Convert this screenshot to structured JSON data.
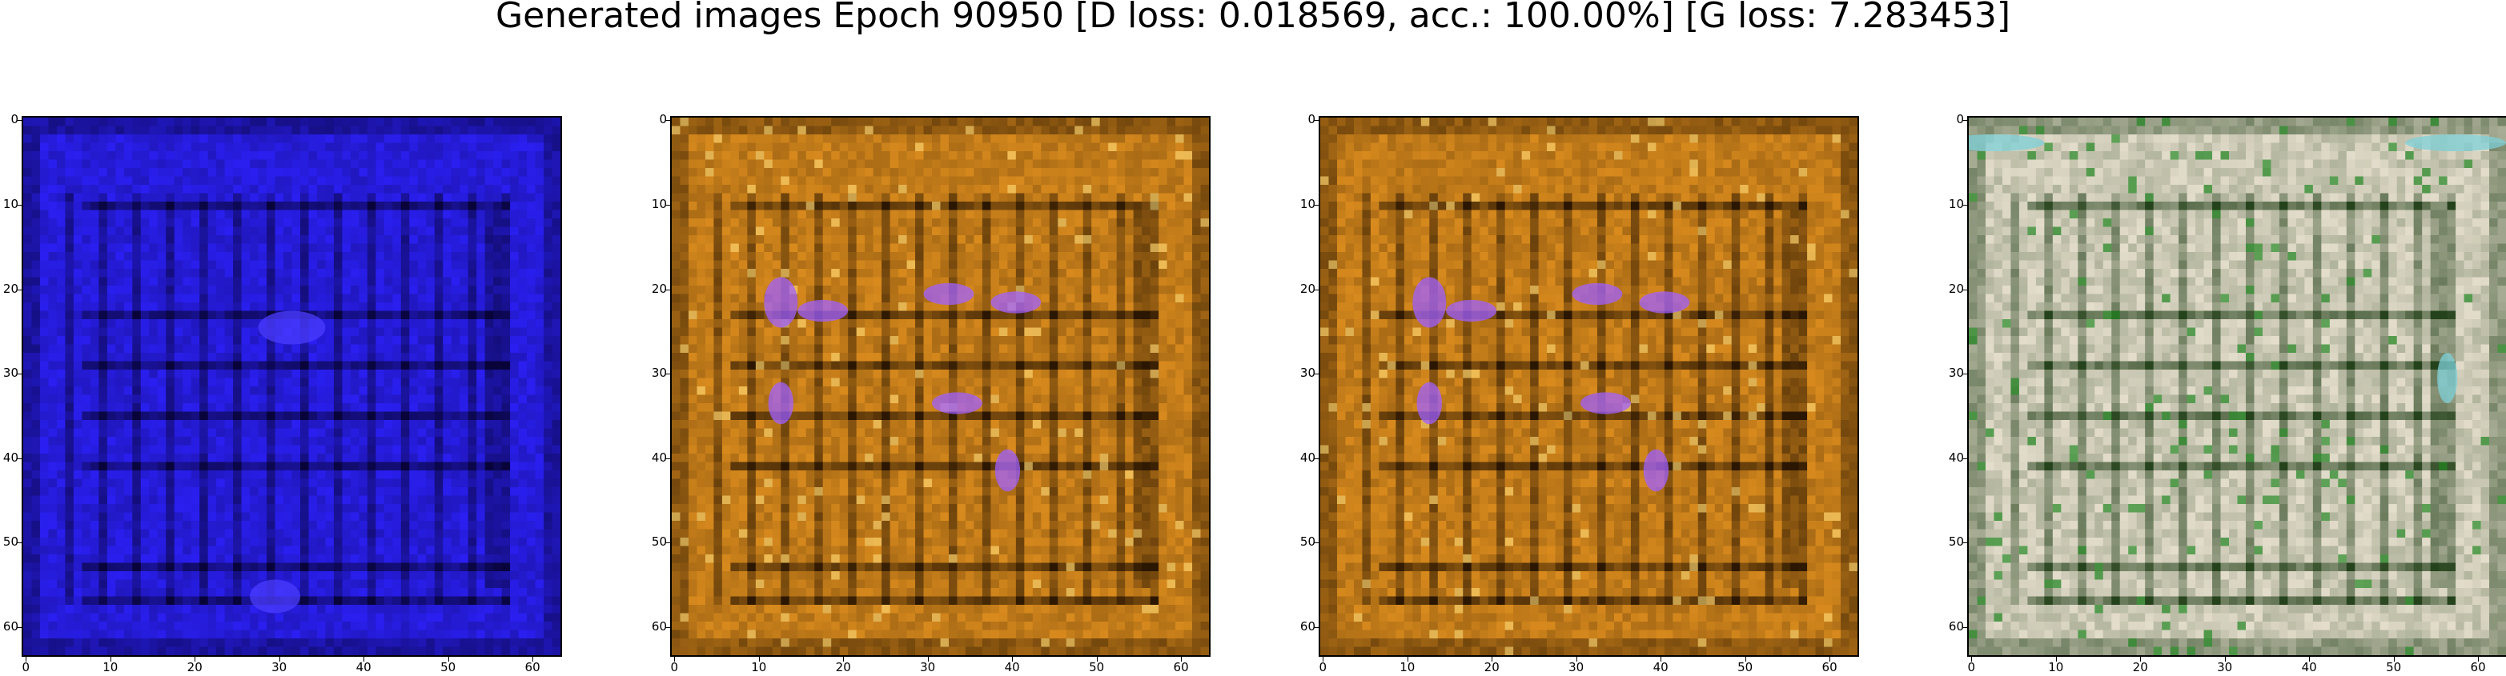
{
  "figure": {
    "title": "Generated images Epoch 90950 [D loss: 0.018569, acc.: 100.00%] [G loss: 7.283453]"
  },
  "axes": {
    "xticks": [
      "0",
      "10",
      "20",
      "30",
      "40",
      "50",
      "60"
    ],
    "yticks": [
      "0",
      "10",
      "20",
      "30",
      "40",
      "50",
      "60"
    ],
    "range": [
      0,
      63
    ]
  },
  "panels": [
    {
      "id": "panel-1",
      "tone": "blue",
      "base": "#2a1ff0",
      "dark": "#060330",
      "accent": "#4b3cff"
    },
    {
      "id": "panel-2",
      "tone": "orange",
      "base": "#d88a1d",
      "dark": "#221100",
      "accent": "#a060ff"
    },
    {
      "id": "panel-3",
      "tone": "orange",
      "base": "#d88a1d",
      "dark": "#221100",
      "accent": "#a060ff"
    },
    {
      "id": "panel-4",
      "tone": "cream",
      "base": "#e4ddcc",
      "dark": "#1a3a12",
      "accent": "#7ed0d8"
    }
  ]
}
